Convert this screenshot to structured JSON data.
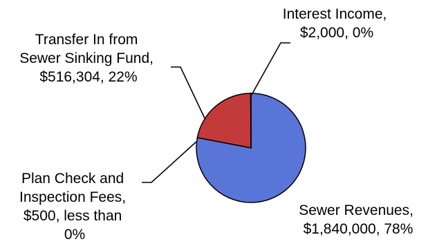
{
  "chart_data": {
    "type": "pie",
    "title": "",
    "slices": [
      {
        "name": "Sewer Revenues",
        "value": 1840000,
        "color": "#5a75d8",
        "label_lines": [
          "Sewer Revenues,",
          "$1,840,000, 78%"
        ]
      },
      {
        "name": "Plan Check and Inspection Fees",
        "value": 500,
        "color": "#c54040",
        "label_lines": [
          "Plan Check and",
          "Inspection Fees,",
          "$500, less than",
          "0%"
        ]
      },
      {
        "name": "Transfer In from Sewer Sinking Fund",
        "value": 516304,
        "color": "#c33a3a",
        "label_lines": [
          "Transfer In from",
          "Sewer Sinking Fund,",
          "$516,304, 22%"
        ]
      },
      {
        "name": "Interest Income",
        "value": 2000,
        "color": "#c54040",
        "label_lines": [
          "Interest Income,",
          "$2,000, 0%"
        ]
      }
    ],
    "start_angle": "12 o'clock",
    "direction": "clockwise",
    "legend": "none"
  }
}
